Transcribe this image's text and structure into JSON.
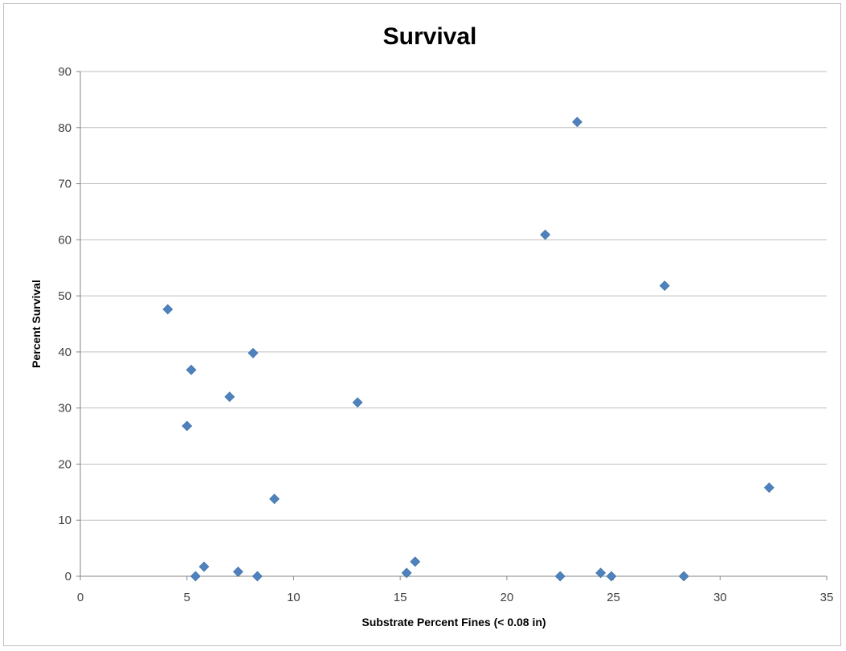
{
  "chart_data": {
    "type": "scatter",
    "title": "Survival",
    "xlabel": "Substrate Percent Fines (< 0.08 in)",
    "ylabel": "Percent Survival",
    "xlim": [
      0,
      35
    ],
    "ylim": [
      0,
      90
    ],
    "xticks": [
      "0",
      "5",
      "10",
      "15",
      "20",
      "25",
      "30",
      "35"
    ],
    "yticks": [
      "0",
      "10",
      "20",
      "30",
      "40",
      "50",
      "60",
      "70",
      "80",
      "90"
    ],
    "grid": "horizontal",
    "legend": "none",
    "marker": "diamond",
    "marker_color": "#4f81bd",
    "series": [
      {
        "points": [
          {
            "x": 4.1,
            "y": 47.6
          },
          {
            "x": 5.0,
            "y": 26.8
          },
          {
            "x": 5.2,
            "y": 36.8
          },
          {
            "x": 5.4,
            "y": 0.0
          },
          {
            "x": 5.8,
            "y": 1.7
          },
          {
            "x": 7.0,
            "y": 32.0
          },
          {
            "x": 7.4,
            "y": 0.8
          },
          {
            "x": 8.1,
            "y": 39.8
          },
          {
            "x": 8.3,
            "y": 0.0
          },
          {
            "x": 9.1,
            "y": 13.8
          },
          {
            "x": 13.0,
            "y": 31.0
          },
          {
            "x": 15.3,
            "y": 0.6
          },
          {
            "x": 15.7,
            "y": 2.6
          },
          {
            "x": 21.8,
            "y": 60.9
          },
          {
            "x": 22.5,
            "y": 0.0
          },
          {
            "x": 23.3,
            "y": 81.0
          },
          {
            "x": 24.4,
            "y": 0.6
          },
          {
            "x": 24.9,
            "y": 0.0
          },
          {
            "x": 27.4,
            "y": 51.8
          },
          {
            "x": 28.3,
            "y": 0.0
          },
          {
            "x": 32.3,
            "y": 15.8
          }
        ]
      }
    ]
  },
  "style": {
    "gridline_color": "#bfbfbf",
    "axis_color": "#868686",
    "frame_color": "#bfbfbf"
  }
}
